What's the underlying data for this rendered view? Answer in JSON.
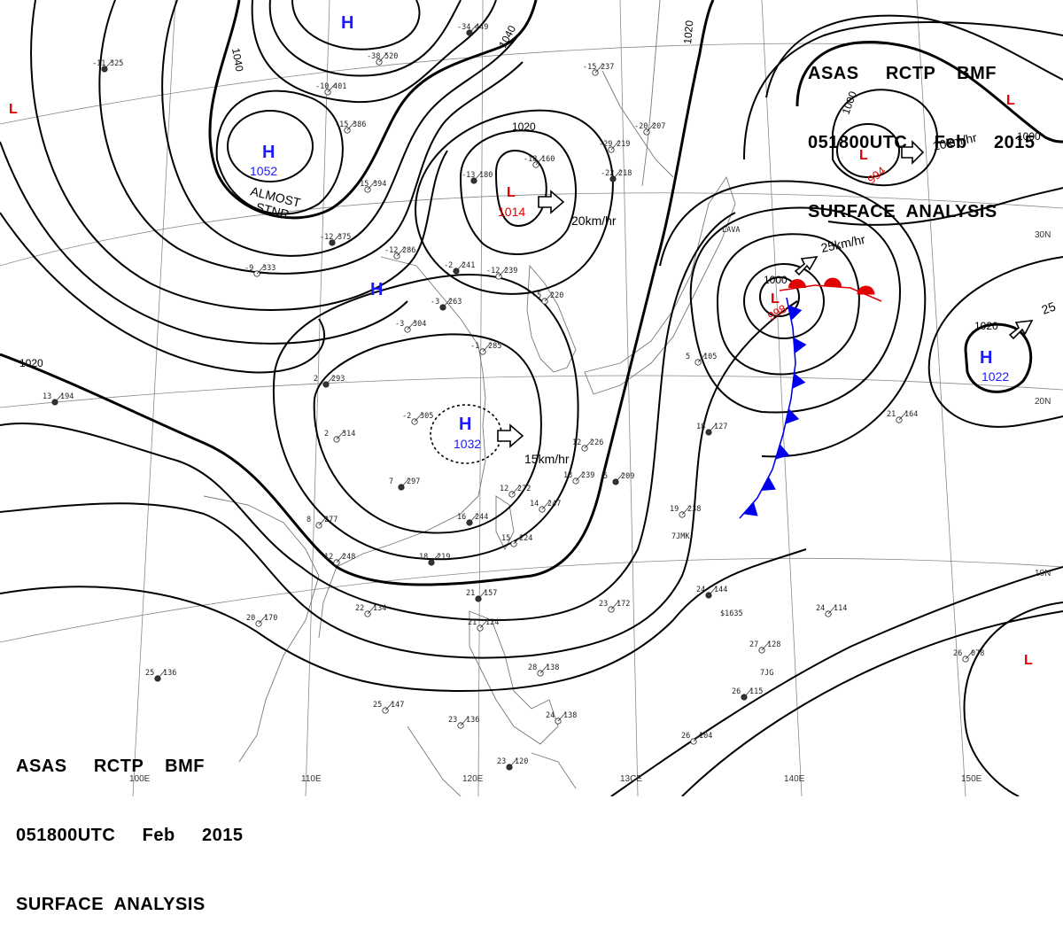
{
  "header_top": {
    "line1": "ASAS     RCTP    BMF",
    "line2": "051800UTC     Feb     2015",
    "line3": "SURFACE  ANALYSIS"
  },
  "header_bottom": {
    "line1": "ASAS     RCTP    BMF",
    "line2": "051800UTC     Feb     2015",
    "line3": "SURFACE  ANALYSIS"
  },
  "colors": {
    "high": "#1a1aff",
    "low": "#e00000",
    "cold_front": "#0000ee",
    "warm_front": "#e00000",
    "isobar": "#000000",
    "grid": "#888888"
  },
  "pressure_centers": [
    {
      "type": "H",
      "value": "1052",
      "note_1": "ALMOST",
      "note_2": "STNR"
    },
    {
      "type": "H",
      "value": ""
    },
    {
      "type": "H",
      "value": ""
    },
    {
      "type": "H",
      "value": "1032",
      "motion": "15km/hr"
    },
    {
      "type": "L",
      "value": "1014",
      "motion": "20km/hr"
    },
    {
      "type": "L",
      "value": "998",
      "motion": "25km/hr"
    },
    {
      "type": "L",
      "value": "994",
      "motion": "10km/hr"
    },
    {
      "type": "H",
      "value": "1022",
      "motion": "25"
    },
    {
      "type": "L",
      "value": ""
    },
    {
      "type": "L",
      "value": ""
    },
    {
      "type": "L",
      "value": ""
    }
  ],
  "isobar_labels": [
    "1040",
    "1040",
    "1020",
    "1020",
    "1020",
    "1000",
    "1000",
    "1000",
    "1020"
  ],
  "grid_labels": {
    "lon": [
      "100E",
      "110E",
      "120E",
      "13CE",
      "140E",
      "150E"
    ],
    "lat": [
      "30N",
      "20N",
      "10N"
    ]
  },
  "station_plots": [
    {
      "t": "-11",
      "p": "325"
    },
    {
      "t": "-10",
      "p": "401"
    },
    {
      "t": "-38",
      "p": "520"
    },
    {
      "t": "-34",
      "p": "449"
    },
    {
      "t": "-15",
      "p": "386"
    },
    {
      "t": "-15",
      "p": "394"
    },
    {
      "t": "-12",
      "p": "375"
    },
    {
      "t": "-9",
      "p": "333"
    },
    {
      "t": "-12",
      "p": "286"
    },
    {
      "t": "-13",
      "p": "180"
    },
    {
      "t": "-18",
      "p": "160"
    },
    {
      "t": "-29",
      "p": "219"
    },
    {
      "t": "-22",
      "p": "218"
    },
    {
      "t": "-20",
      "p": "207"
    },
    {
      "t": "-15",
      "p": "237"
    },
    {
      "t": "-2",
      "p": "241"
    },
    {
      "t": "-12",
      "p": "239"
    },
    {
      "t": "-5",
      "p": "220"
    },
    {
      "t": "-3",
      "p": "263"
    },
    {
      "t": "-3",
      "p": "304"
    },
    {
      "t": "-1",
      "p": "285"
    },
    {
      "t": "2",
      "p": "293"
    },
    {
      "t": "-2",
      "p": "305"
    },
    {
      "t": "2",
      "p": "314"
    },
    {
      "t": "7",
      "p": "297"
    },
    {
      "t": "8",
      "p": "277"
    },
    {
      "t": "12",
      "p": "248"
    },
    {
      "t": "18",
      "p": "219"
    },
    {
      "t": "12",
      "p": "226"
    },
    {
      "t": "13",
      "p": "239"
    },
    {
      "t": "5",
      "p": "209"
    },
    {
      "t": "12",
      "p": "272"
    },
    {
      "t": "14",
      "p": "247"
    },
    {
      "t": "16",
      "p": "244"
    },
    {
      "t": "15",
      "p": "224"
    },
    {
      "t": "19",
      "p": "238"
    },
    {
      "t": "18",
      "p": "127"
    },
    {
      "t": "21",
      "p": "164"
    },
    {
      "t": "5",
      "p": "105"
    },
    {
      "t": "13",
      "p": "194"
    },
    {
      "t": "20",
      "p": "170"
    },
    {
      "t": "22",
      "p": "134"
    },
    {
      "t": "21",
      "p": "157"
    },
    {
      "t": "21",
      "p": "124"
    },
    {
      "t": "23",
      "p": "172"
    },
    {
      "t": "24",
      "p": "144"
    },
    {
      "t": "24",
      "p": "114"
    },
    {
      "t": "27",
      "p": "128"
    },
    {
      "t": "26",
      "p": "115"
    },
    {
      "t": "26",
      "p": "104"
    },
    {
      "t": "26",
      "p": "078"
    },
    {
      "t": "25",
      "p": "136"
    },
    {
      "t": "25",
      "p": "147"
    },
    {
      "t": "23",
      "p": "136"
    },
    {
      "t": "23",
      "p": "120"
    },
    {
      "t": "28",
      "p": "138"
    },
    {
      "t": "24",
      "p": "138"
    }
  ],
  "ship_calls": [
    "7JMK",
    "$1635",
    "7JG",
    "LAVA"
  ]
}
